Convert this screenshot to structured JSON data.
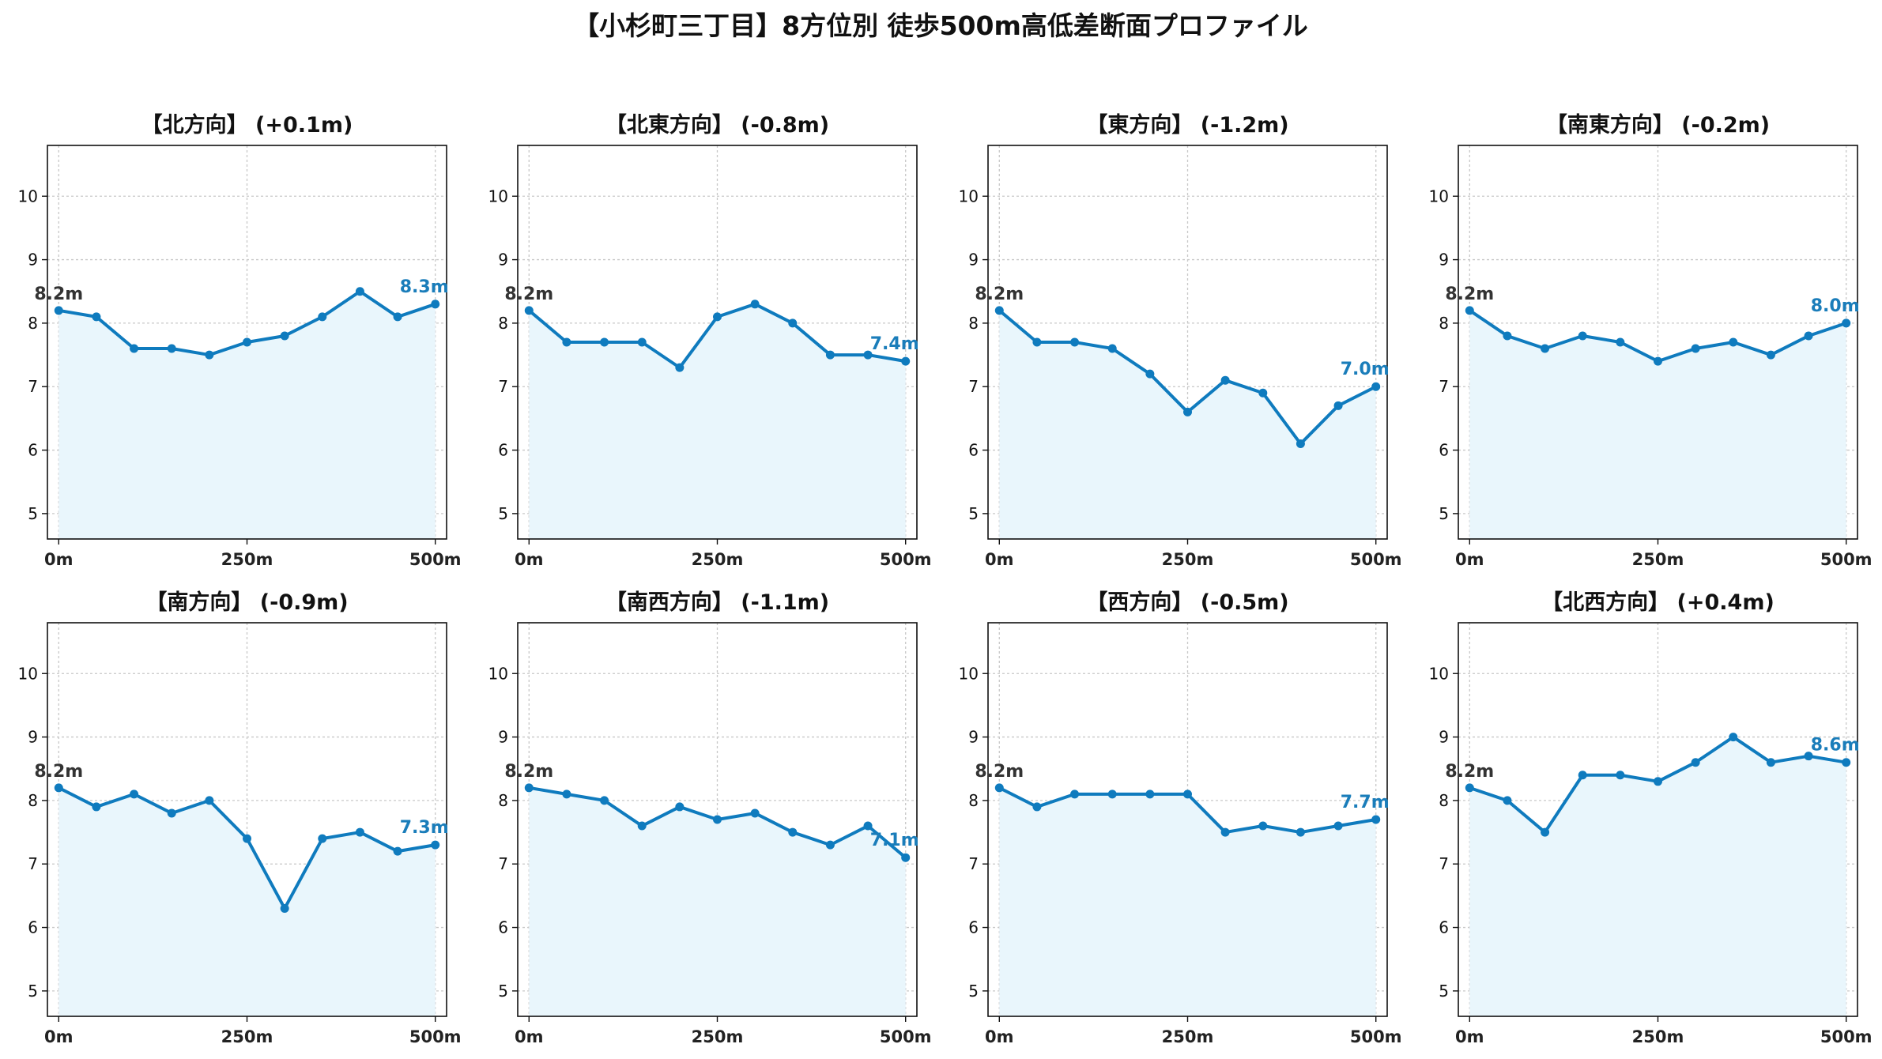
{
  "figure_title": "【小杉町三丁目】8方位別 徒歩500m高低差断面プロファイル",
  "colors": {
    "line": "#0F7BBE",
    "fill": "#E9F6FC",
    "grid": "#C8C8C8",
    "start_label": "#333333",
    "end_label": "#1A7DBA"
  },
  "chart_data": [
    {
      "type": "area",
      "title": "【北方向】 (+0.1m)",
      "x": [
        0,
        50,
        100,
        150,
        200,
        250,
        300,
        350,
        400,
        450,
        500
      ],
      "values": [
        8.2,
        8.1,
        7.6,
        7.6,
        7.5,
        7.7,
        7.8,
        8.1,
        8.5,
        8.1,
        8.3
      ],
      "start_label": "8.2m",
      "end_label": "8.3m",
      "xticks": [
        0,
        250,
        500
      ],
      "xtick_labels": [
        "0m",
        "250m",
        "500m"
      ],
      "yticks": [
        5,
        6,
        7,
        8,
        9,
        10
      ],
      "xlim": [
        -15,
        515
      ],
      "ylim": [
        4.6,
        10.8
      ],
      "grid": true
    },
    {
      "type": "area",
      "title": "【北東方向】 (-0.8m)",
      "x": [
        0,
        50,
        100,
        150,
        200,
        250,
        300,
        350,
        400,
        450,
        500
      ],
      "values": [
        8.2,
        7.7,
        7.7,
        7.7,
        7.3,
        8.1,
        8.3,
        8.0,
        7.5,
        7.5,
        7.4
      ],
      "start_label": "8.2m",
      "end_label": "7.4m",
      "xticks": [
        0,
        250,
        500
      ],
      "xtick_labels": [
        "0m",
        "250m",
        "500m"
      ],
      "yticks": [
        5,
        6,
        7,
        8,
        9,
        10
      ],
      "xlim": [
        -15,
        515
      ],
      "ylim": [
        4.6,
        10.8
      ],
      "grid": true
    },
    {
      "type": "area",
      "title": "【東方向】 (-1.2m)",
      "x": [
        0,
        50,
        100,
        150,
        200,
        250,
        300,
        350,
        400,
        450,
        500
      ],
      "values": [
        8.2,
        7.7,
        7.7,
        7.6,
        7.2,
        6.6,
        7.1,
        6.9,
        6.1,
        6.7,
        7.0
      ],
      "start_label": "8.2m",
      "end_label": "7.0m",
      "xticks": [
        0,
        250,
        500
      ],
      "xtick_labels": [
        "0m",
        "250m",
        "500m"
      ],
      "yticks": [
        5,
        6,
        7,
        8,
        9,
        10
      ],
      "xlim": [
        -15,
        515
      ],
      "ylim": [
        4.6,
        10.8
      ],
      "grid": true
    },
    {
      "type": "area",
      "title": "【南東方向】 (-0.2m)",
      "x": [
        0,
        50,
        100,
        150,
        200,
        250,
        300,
        350,
        400,
        450,
        500
      ],
      "values": [
        8.2,
        7.8,
        7.6,
        7.8,
        7.7,
        7.4,
        7.6,
        7.7,
        7.5,
        7.8,
        8.0
      ],
      "start_label": "8.2m",
      "end_label": "8.0m",
      "xticks": [
        0,
        250,
        500
      ],
      "xtick_labels": [
        "0m",
        "250m",
        "500m"
      ],
      "yticks": [
        5,
        6,
        7,
        8,
        9,
        10
      ],
      "xlim": [
        -15,
        515
      ],
      "ylim": [
        4.6,
        10.8
      ],
      "grid": true
    },
    {
      "type": "area",
      "title": "【南方向】 (-0.9m)",
      "x": [
        0,
        50,
        100,
        150,
        200,
        250,
        300,
        350,
        400,
        450,
        500
      ],
      "values": [
        8.2,
        7.9,
        8.1,
        7.8,
        8.0,
        7.4,
        6.3,
        7.4,
        7.5,
        7.2,
        7.3
      ],
      "start_label": "8.2m",
      "end_label": "7.3m",
      "xticks": [
        0,
        250,
        500
      ],
      "xtick_labels": [
        "0m",
        "250m",
        "500m"
      ],
      "yticks": [
        5,
        6,
        7,
        8,
        9,
        10
      ],
      "xlim": [
        -15,
        515
      ],
      "ylim": [
        4.6,
        10.8
      ],
      "grid": true
    },
    {
      "type": "area",
      "title": "【南西方向】 (-1.1m)",
      "x": [
        0,
        50,
        100,
        150,
        200,
        250,
        300,
        350,
        400,
        450,
        500
      ],
      "values": [
        8.2,
        8.1,
        8.0,
        7.6,
        7.9,
        7.7,
        7.8,
        7.5,
        7.3,
        7.6,
        7.1
      ],
      "start_label": "8.2m",
      "end_label": "7.1m",
      "xticks": [
        0,
        250,
        500
      ],
      "xtick_labels": [
        "0m",
        "250m",
        "500m"
      ],
      "yticks": [
        5,
        6,
        7,
        8,
        9,
        10
      ],
      "xlim": [
        -15,
        515
      ],
      "ylim": [
        4.6,
        10.8
      ],
      "grid": true
    },
    {
      "type": "area",
      "title": "【西方向】 (-0.5m)",
      "x": [
        0,
        50,
        100,
        150,
        200,
        250,
        300,
        350,
        400,
        450,
        500
      ],
      "values": [
        8.2,
        7.9,
        8.1,
        8.1,
        8.1,
        8.1,
        7.5,
        7.6,
        7.5,
        7.6,
        7.7
      ],
      "start_label": "8.2m",
      "end_label": "7.7m",
      "xticks": [
        0,
        250,
        500
      ],
      "xtick_labels": [
        "0m",
        "250m",
        "500m"
      ],
      "yticks": [
        5,
        6,
        7,
        8,
        9,
        10
      ],
      "xlim": [
        -15,
        515
      ],
      "ylim": [
        4.6,
        10.8
      ],
      "grid": true
    },
    {
      "type": "area",
      "title": "【北西方向】 (+0.4m)",
      "x": [
        0,
        50,
        100,
        150,
        200,
        250,
        300,
        350,
        400,
        450,
        500
      ],
      "values": [
        8.2,
        8.0,
        7.5,
        8.4,
        8.4,
        8.3,
        8.6,
        9.0,
        8.6,
        8.7,
        8.6
      ],
      "start_label": "8.2m",
      "end_label": "8.6m",
      "xticks": [
        0,
        250,
        500
      ],
      "xtick_labels": [
        "0m",
        "250m",
        "500m"
      ],
      "yticks": [
        5,
        6,
        7,
        8,
        9,
        10
      ],
      "xlim": [
        -15,
        515
      ],
      "ylim": [
        4.6,
        10.8
      ],
      "grid": true
    }
  ]
}
